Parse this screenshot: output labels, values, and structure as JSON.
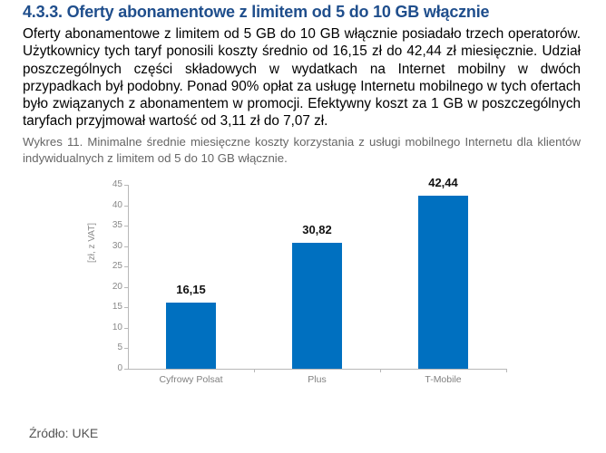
{
  "section": {
    "title": "4.3.3. Oferty abonamentowe z limitem od 5 do 10 GB włącznie",
    "paragraph": "Oferty abonamentowe z limitem od 5 GB do 10 GB włącznie posiadało trzech operatorów. Użytkownicy tych taryf ponosili koszty średnio od 16,15 zł do 42,44 zł miesięcznie. Udział poszczególnych części składowych w wydatkach na Internet mobilny w dwóch przypadkach był podobny. Ponad 90% opłat za usługę Internetu mobilnego w tych ofertach było związanych z abonamentem w promocji. Efektywny koszt za 1 GB w poszczególnych taryfach przyjmował wartość od 3,11 zł do 7,07 zł.",
    "caption": "Wykres 11. Minimalne średnie miesięczne koszty korzystania z usługi mobilnego Internetu dla klientów indywidualnych z limitem od 5 do 10 GB włącznie.",
    "source": "Źródło: UKE"
  },
  "colors": {
    "title": "#1f4e8c",
    "bar": "#0070c0",
    "caption": "#666666"
  },
  "chart_data": {
    "type": "bar",
    "title": "Minimalne średnie miesięczne koszty korzystania z usługi mobilnego Internetu dla klientów indywidualnych z limitem od 5 do 10 GB włącznie",
    "categories": [
      "Cyfrowy Polsat",
      "Plus",
      "T-Mobile"
    ],
    "values": [
      16.15,
      30.82,
      42.44
    ],
    "value_labels": [
      "16,15",
      "30,82",
      "42,44"
    ],
    "xlabel": "",
    "ylabel": "[zł, z VAT]",
    "ylim": [
      0,
      45
    ],
    "yticks": [
      "0",
      "5",
      "10",
      "15",
      "20",
      "25",
      "30",
      "35",
      "40",
      "45"
    ],
    "grid": false,
    "legend": null
  }
}
